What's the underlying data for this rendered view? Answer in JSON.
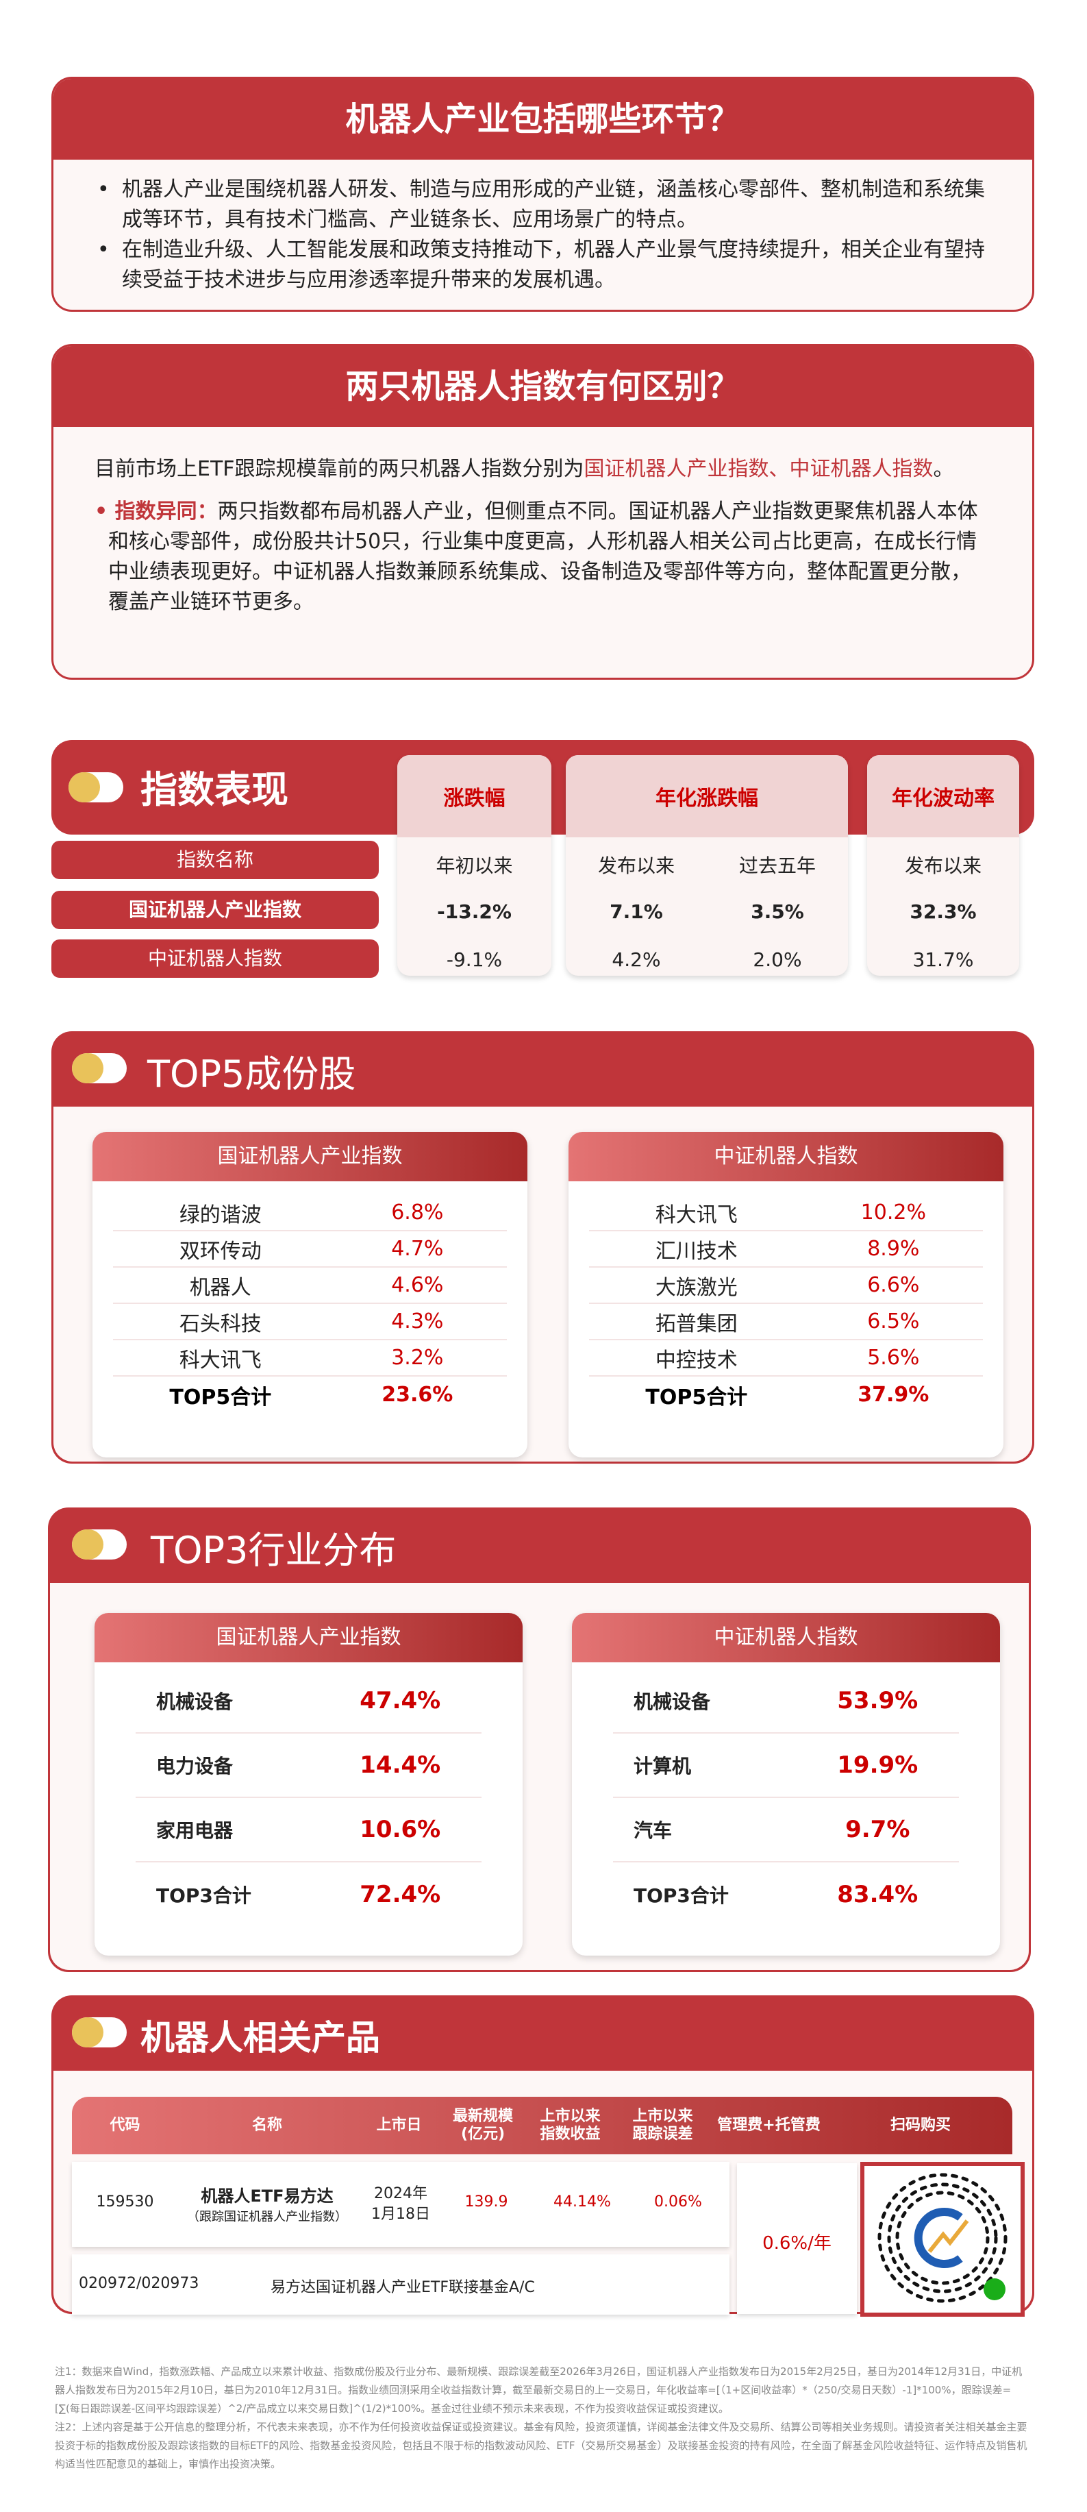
{
  "q1": {
    "title": "机器人产业包括哪些环节？",
    "bullets": [
      "机器人产业是围绕机器人研发、制造与应用形成的产业链，涵盖核心零部件、整机制造和系统集成等环节，具有技术门槛高、产业链条长、应用场景广的特点。",
      "在制造业升级、人工智能发展和政策支持推动下，机器人产业景气度持续提升，相关企业有望持续受益于技术进步与应用渗透率提升带来的发展机遇。"
    ]
  },
  "q2": {
    "title": "两只机器人指数有何区别？",
    "intro_prefix": "目前市场上ETF跟踪规模靠前的两只机器人指数分别为",
    "intro_highlight": "国证机器人产业指数、中证机器人指数",
    "intro_suffix": "。",
    "diff_label": "指数异同：",
    "diff_text": "两只指数都布局机器人产业，但侧重点不同。国证机器人产业指数更聚焦机器人本体和核心零部件，成份股共计50只，行业集中度更高，人形机器人相关公司占比更高，在成长行情中业绩表现更好。中证机器人指数兼顾系统集成、设备制造及零部件等方向，整体配置更分散，覆盖产业链环节更多。"
  },
  "perf": {
    "title": "指数表现",
    "name_header": "指数名称",
    "indices": [
      "国证机器人产业指数",
      "中证机器人指数"
    ],
    "groups": [
      {
        "label": "涨跌幅",
        "subs": [
          "年初以来"
        ],
        "values": [
          [
            "-13.2%"
          ],
          [
            "-9.1%"
          ]
        ]
      },
      {
        "label": "年化涨跌幅",
        "subs": [
          "发布以来",
          "过去五年"
        ],
        "values": [
          [
            "7.1%",
            "3.5%"
          ],
          [
            "4.2%",
            "2.0%"
          ]
        ]
      },
      {
        "label": "年化波动率",
        "subs": [
          "发布以来"
        ],
        "values": [
          [
            "32.3%"
          ],
          [
            "31.7%"
          ]
        ]
      }
    ]
  },
  "top5": {
    "title": "TOP5成份股",
    "panels": [
      {
        "index": "国证机器人产业指数",
        "rows": [
          [
            "绿的谐波",
            "6.8%"
          ],
          [
            "双环传动",
            "4.7%"
          ],
          [
            "机器人",
            "4.6%"
          ],
          [
            "石头科技",
            "4.3%"
          ],
          [
            "科大讯飞",
            "3.2%"
          ]
        ],
        "total": [
          "TOP5合计",
          "23.6%"
        ]
      },
      {
        "index": "中证机器人指数",
        "rows": [
          [
            "科大讯飞",
            "10.2%"
          ],
          [
            "汇川技术",
            "8.9%"
          ],
          [
            "大族激光",
            "6.6%"
          ],
          [
            "拓普集团",
            "6.5%"
          ],
          [
            "中控技术",
            "5.6%"
          ]
        ],
        "total": [
          "TOP5合计",
          "37.9%"
        ]
      }
    ]
  },
  "top3": {
    "title": "TOP3行业分布",
    "panels": [
      {
        "index": "国证机器人产业指数",
        "rows": [
          [
            "机械设备",
            "47.4%"
          ],
          [
            "电力设备",
            "14.4%"
          ],
          [
            "家用电器",
            "10.6%"
          ]
        ],
        "total": [
          "TOP3合计",
          "72.4%"
        ]
      },
      {
        "index": "中证机器人指数",
        "rows": [
          [
            "机械设备",
            "53.9%"
          ],
          [
            "计算机",
            "19.9%"
          ],
          [
            "汽车",
            "9.7%"
          ]
        ],
        "total": [
          "TOP3合计",
          "83.4%"
        ]
      }
    ]
  },
  "products": {
    "title": "机器人相关产品",
    "headers": [
      "代码",
      "名称",
      "上市日",
      "最新规模\n(亿元)",
      "上市以来\n指数收益",
      "上市以来\n跟踪误差",
      "管理费+托管费",
      "扫码购买"
    ],
    "etf": {
      "code": "159530",
      "name": "机器人ETF易方达",
      "sub": "（跟踪国证机器人产业指数）",
      "date": "2024年\n1月18日",
      "size": "139.9",
      "ret": "44.14%",
      "te": "0.06%"
    },
    "fee": "0.6%/年",
    "link": {
      "code": "020972/020973",
      "name": "易方达国证机器人产业ETF联接基金A/C"
    }
  },
  "notes": [
    "注1：数据来自Wind，指数涨跌幅、产品成立以来累计收益、指数成份股及行业分布、最新规模、跟踪误差截至2026年3月26日，国证机器人产业指数发布日为2015年2月25日，基日为2014年12月31日，中证机器人指数发布日为2015年2月10日，基日为2010年12月31日。指数业绩回测采用全收益指数计算，截至最新交易日的上一交易日，年化收益率=[（1+区间收益率）*（250/交易日天数）-1]*100%，跟踪误差=[∑(每日跟踪误差-区间平均跟踪误差）^2/产品成立以来交易日数]^(1/2)*100%。基金过往业绩不预示未来表现，不作为投资收益保证或投资建议。",
    "注2：上述内容是基于公开信息的整理分析，不代表未来表现，亦不作为任何投资收益保证或投资建议。基金有风险，投资须谨慎，详阅基金法律文件及交易所、结算公司等相关业务规则。请投资者关注相关基金主要投资于标的指数成份股及跟踪该指数的目标ETF的风险、指数基金投资风险，包括且不限于标的指数波动风险、ETF（交易所交易基金）及联接基金投资的持有风险，在全面了解基金风险收益特征、运作特点及销售机构适当性匹配意见的基础上，审慎作出投资决策。"
  ],
  "colors": {
    "brand_red": "#c0353a",
    "value_red": "#cc0000",
    "accent_yellow": "#e9c25a"
  }
}
